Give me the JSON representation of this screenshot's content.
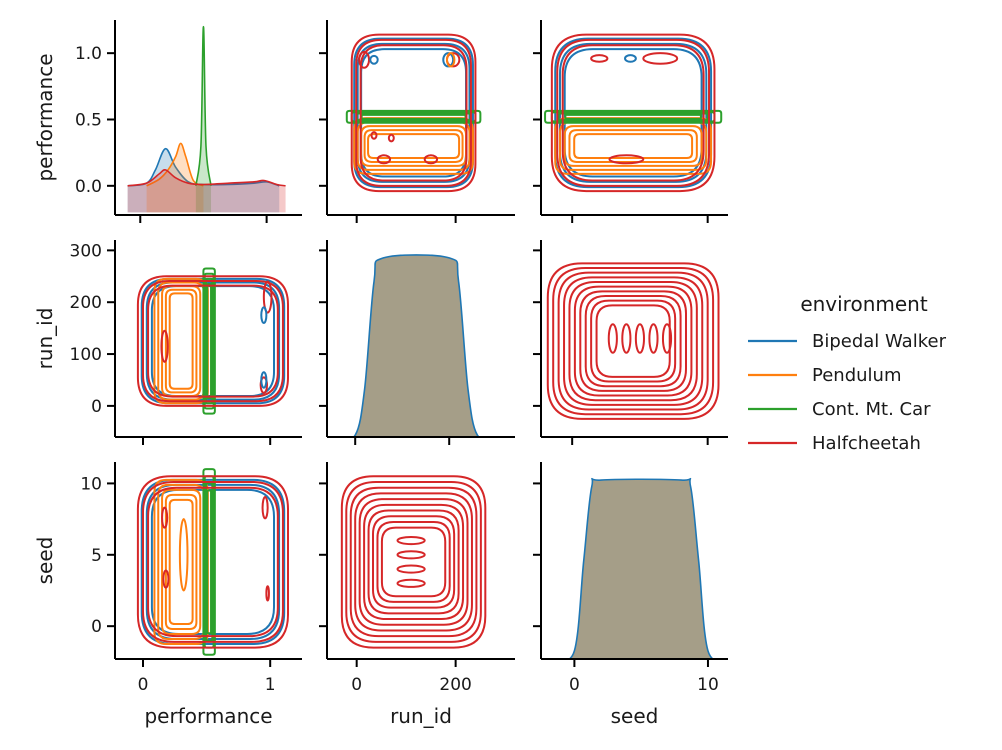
{
  "chart_data": {
    "type": "pairplot",
    "variables": [
      "performance",
      "run_id",
      "seed"
    ],
    "axis_labels": {
      "performance": "performance",
      "run_id": "run_id",
      "seed": "seed"
    },
    "ranges": {
      "performance": [
        -0.22,
        1.25
      ],
      "run_id": [
        -60,
        320
      ],
      "seed": [
        -2.3,
        11.5
      ]
    },
    "x_ticks": {
      "performance": [
        {
          "value": 0,
          "label": "0"
        },
        {
          "value": 1,
          "label": "1"
        }
      ],
      "run_id": [
        {
          "value": 0,
          "label": "0"
        },
        {
          "value": 200,
          "label": "200"
        }
      ],
      "seed": [
        {
          "value": 0,
          "label": "0"
        },
        {
          "value": 10,
          "label": "10"
        }
      ]
    },
    "y_ticks": {
      "performance": [
        {
          "value": 0.0,
          "label": "0.0"
        },
        {
          "value": 0.5,
          "label": "0.5"
        },
        {
          "value": 1.0,
          "label": "1.0"
        }
      ],
      "run_id": [
        {
          "value": 0,
          "label": "0"
        },
        {
          "value": 100,
          "label": "100"
        },
        {
          "value": 200,
          "label": "200"
        },
        {
          "value": 300,
          "label": "300"
        }
      ],
      "seed": [
        {
          "value": 0,
          "label": "0"
        },
        {
          "value": 5,
          "label": "5"
        },
        {
          "value": 10,
          "label": "10"
        }
      ]
    },
    "diag_x_ranges": {
      "performance": [
        -0.2,
        1.28
      ],
      "run_id": [
        -60,
        340
      ],
      "seed": [
        -2.5,
        11.5
      ]
    },
    "diag_ylim": {
      "run_id": [
        0,
        330
      ],
      "seed": [
        0,
        12
      ]
    },
    "legend": {
      "title": "environment",
      "placement": "right",
      "entries": [
        {
          "label": "Bipedal Walker",
          "color": "#1f77b4"
        },
        {
          "label": "Pendulum",
          "color": "#ff7f0e"
        },
        {
          "label": "Cont. Mt. Car",
          "color": "#2ca02c"
        },
        {
          "label": "Halfcheetah",
          "color": "#d62728"
        }
      ]
    },
    "diag_kde": [
      {
        "variable": "performance",
        "series": "Bipedal Walker",
        "x": [
          -0.1,
          0.05,
          0.12,
          0.2,
          0.28,
          0.38,
          0.5,
          0.7,
          0.9,
          1.0,
          1.1
        ],
        "y": [
          0.0,
          0.02,
          0.12,
          0.28,
          0.14,
          0.03,
          0.01,
          0.01,
          0.02,
          0.03,
          0.0
        ]
      },
      {
        "variable": "performance",
        "series": "Pendulum",
        "x": [
          0.05,
          0.15,
          0.22,
          0.28,
          0.32,
          0.36,
          0.42,
          0.5
        ],
        "y": [
          0.0,
          0.05,
          0.12,
          0.22,
          0.32,
          0.22,
          0.04,
          0.0
        ]
      },
      {
        "variable": "performance",
        "series": "Cont. Mt. Car",
        "x": [
          0.44,
          0.48,
          0.5,
          0.52,
          0.56
        ],
        "y": [
          0.0,
          0.3,
          1.2,
          0.3,
          0.0
        ]
      },
      {
        "variable": "performance",
        "series": "Halfcheetah",
        "x": [
          -0.1,
          0.05,
          0.15,
          0.2,
          0.28,
          0.38,
          0.5,
          0.7,
          0.9,
          0.98,
          1.08,
          1.15
        ],
        "y": [
          0.0,
          0.02,
          0.09,
          0.12,
          0.06,
          0.02,
          0.01,
          0.02,
          0.03,
          0.04,
          0.01,
          0.0
        ]
      },
      {
        "variable": "run_id",
        "series": "all",
        "x": [
          -40,
          0,
          20,
          40,
          60,
          200,
          220,
          240,
          260,
          300
        ],
        "y": [
          0,
          3,
          80,
          260,
          300,
          300,
          260,
          80,
          3,
          0
        ]
      },
      {
        "variable": "seed",
        "series": "all",
        "x": [
          -1.5,
          0,
          0.7,
          1.3,
          2.0,
          8.0,
          8.7,
          9.3,
          10.0,
          11.5
        ],
        "y": [
          0,
          0.5,
          6,
          10.5,
          10.9,
          10.9,
          10.5,
          6,
          0.5,
          0
        ]
      }
    ],
    "offdiag_contours": [
      {
        "x": "run_id",
        "y": "performance",
        "series": "Bipedal Walker",
        "center_x": 115,
        "center_y": 0.55,
        "widths": [
          240,
          226,
          212
        ],
        "heights": [
          1.12,
          1.04,
          0.96
        ]
      },
      {
        "x": "run_id",
        "y": "performance",
        "series": "Pendulum",
        "center_x": 115,
        "center_y": 0.3,
        "widths": [
          240,
          226,
          212,
          198,
          184
        ],
        "heights": [
          0.42,
          0.36,
          0.3,
          0.24,
          0.18
        ]
      },
      {
        "x": "run_id",
        "y": "performance",
        "series": "Cont. Mt. Car",
        "center_x": 115,
        "center_y": 0.52,
        "widths": [
          270,
          250,
          230,
          210
        ],
        "heights": [
          0.09,
          0.07,
          0.05,
          0.03
        ]
      },
      {
        "x": "run_id",
        "y": "performance",
        "series": "Halfcheetah",
        "center_x": 115,
        "center_y": 0.55,
        "widths": [
          250,
          232,
          214
        ],
        "heights": [
          1.18,
          1.1,
          1.02
        ]
      },
      {
        "x": "seed",
        "y": "performance",
        "series": "Bipedal Walker",
        "center_x": 4.5,
        "center_y": 0.55,
        "widths": [
          11.5,
          10.8,
          10.1
        ],
        "heights": [
          1.12,
          1.04,
          0.96
        ]
      },
      {
        "x": "seed",
        "y": "performance",
        "series": "Pendulum",
        "center_x": 4.5,
        "center_y": 0.3,
        "widths": [
          11.5,
          10.8,
          10.1,
          9.4,
          8.7
        ],
        "heights": [
          0.42,
          0.36,
          0.3,
          0.24,
          0.18
        ]
      },
      {
        "x": "seed",
        "y": "performance",
        "series": "Cont. Mt. Car",
        "center_x": 4.5,
        "center_y": 0.52,
        "widths": [
          13,
          12,
          11,
          10
        ],
        "heights": [
          0.09,
          0.07,
          0.05,
          0.03
        ]
      },
      {
        "x": "seed",
        "y": "performance",
        "series": "Halfcheetah",
        "center_x": 4.5,
        "center_y": 0.55,
        "widths": [
          12,
          11.2,
          10.4
        ],
        "heights": [
          1.18,
          1.1,
          1.02
        ]
      },
      {
        "x": "performance",
        "y": "run_id",
        "series": "Bipedal Walker",
        "center_x": 0.55,
        "center_y": 125,
        "widths": [
          1.12,
          1.04,
          0.96
        ],
        "heights": [
          240,
          226,
          212
        ]
      },
      {
        "x": "performance",
        "y": "run_id",
        "series": "Pendulum",
        "center_x": 0.3,
        "center_y": 125,
        "widths": [
          0.42,
          0.36,
          0.3,
          0.24,
          0.18
        ],
        "heights": [
          240,
          226,
          212,
          198,
          184
        ]
      },
      {
        "x": "performance",
        "y": "run_id",
        "series": "Cont. Mt. Car",
        "center_x": 0.52,
        "center_y": 125,
        "widths": [
          0.09,
          0.07,
          0.05,
          0.03
        ],
        "heights": [
          280,
          260,
          240,
          220
        ]
      },
      {
        "x": "performance",
        "y": "run_id",
        "series": "Halfcheetah",
        "center_x": 0.55,
        "center_y": 125,
        "widths": [
          1.18,
          1.1,
          1.02
        ],
        "heights": [
          250,
          232,
          214
        ]
      },
      {
        "x": "performance",
        "y": "seed",
        "series": "Bipedal Walker",
        "center_x": 0.55,
        "center_y": 4.5,
        "widths": [
          1.12,
          1.04,
          0.96
        ],
        "heights": [
          11.5,
          10.8,
          10.1
        ]
      },
      {
        "x": "performance",
        "y": "seed",
        "series": "Pendulum",
        "center_x": 0.3,
        "center_y": 4.5,
        "widths": [
          0.42,
          0.36,
          0.3,
          0.24,
          0.18
        ],
        "heights": [
          11.5,
          10.8,
          10.1,
          9.4,
          8.7
        ]
      },
      {
        "x": "performance",
        "y": "seed",
        "series": "Cont. Mt. Car",
        "center_x": 0.52,
        "center_y": 4.5,
        "widths": [
          0.09,
          0.07,
          0.05,
          0.03
        ],
        "heights": [
          13,
          12,
          11,
          10
        ]
      },
      {
        "x": "performance",
        "y": "seed",
        "series": "Halfcheetah",
        "center_x": 0.55,
        "center_y": 4.5,
        "widths": [
          1.18,
          1.1,
          1.02
        ],
        "heights": [
          12,
          11.2,
          10.4
        ]
      },
      {
        "x": "seed",
        "y": "run_id",
        "series": "Halfcheetah",
        "center_x": 4.5,
        "center_y": 125,
        "widths": [
          12.6,
          11.8,
          11.0,
          10.2,
          9.4,
          8.6,
          7.8,
          7.0,
          6.2,
          5.4
        ],
        "heights": [
          300,
          282,
          264,
          246,
          228,
          210,
          192,
          174,
          156,
          138
        ]
      },
      {
        "x": "run_id",
        "y": "seed",
        "series": "Halfcheetah",
        "center_x": 115,
        "center_y": 4.5,
        "widths": [
          290,
          272,
          254,
          236,
          218,
          200,
          182,
          164,
          146,
          128
        ],
        "heights": [
          12.0,
          11.2,
          10.4,
          9.6,
          8.8,
          8.0,
          7.2,
          6.4,
          5.6,
          4.8
        ]
      }
    ],
    "offdiag_small_contours": [
      {
        "x": "run_id",
        "y": "performance",
        "series": "Halfcheetah",
        "points": [
          [
            15,
            0.95,
            20,
            0.12
          ],
          [
            195,
            0.95,
            25,
            0.1
          ],
          [
            55,
            0.2,
            25,
            0.06
          ],
          [
            150,
            0.2,
            25,
            0.06
          ],
          [
            35,
            0.38,
            10,
            0.05
          ],
          [
            70,
            0.36,
            10,
            0.05
          ]
        ]
      },
      {
        "x": "run_id",
        "y": "performance",
        "series": "Bipedal Walker",
        "points": [
          [
            35,
            0.95,
            15,
            0.06
          ],
          [
            185,
            0.95,
            20,
            0.1
          ]
        ]
      },
      {
        "x": "run_id",
        "y": "performance",
        "series": "Pendulum",
        "points": [
          [
            190,
            0.95,
            15,
            0.1
          ]
        ]
      },
      {
        "x": "seed",
        "y": "performance",
        "series": "Halfcheetah",
        "points": [
          [
            2,
            0.96,
            1.2,
            0.05
          ],
          [
            6.5,
            0.96,
            2.5,
            0.08
          ],
          [
            4,
            0.2,
            2.5,
            0.06
          ]
        ]
      },
      {
        "x": "seed",
        "y": "performance",
        "series": "Bipedal Walker",
        "points": [
          [
            4.3,
            0.96,
            0.8,
            0.05
          ]
        ]
      },
      {
        "x": "performance",
        "y": "run_id",
        "series": "Halfcheetah",
        "points": [
          [
            0.17,
            115,
            0.05,
            60
          ],
          [
            0.98,
            210,
            0.06,
            60
          ],
          [
            0.95,
            40,
            0.05,
            30
          ]
        ]
      },
      {
        "x": "performance",
        "y": "run_id",
        "series": "Bipedal Walker",
        "points": [
          [
            0.95,
            175,
            0.04,
            30
          ],
          [
            0.95,
            50,
            0.04,
            30
          ]
        ]
      },
      {
        "x": "performance",
        "y": "seed",
        "series": "Halfcheetah",
        "points": [
          [
            0.17,
            7.6,
            0.04,
            1.4
          ],
          [
            0.18,
            3.3,
            0.04,
            1.2
          ],
          [
            0.96,
            8.3,
            0.04,
            1.5
          ],
          [
            0.98,
            2.3,
            0.02,
            1.0
          ]
        ]
      },
      {
        "x": "performance",
        "y": "seed",
        "series": "Pendulum",
        "points": [
          [
            0.32,
            5.0,
            0.06,
            5.0
          ]
        ]
      },
      {
        "x": "seed",
        "y": "run_id",
        "series": "Halfcheetah",
        "points": [
          [
            3.0,
            130,
            0.6,
            55
          ],
          [
            4.0,
            130,
            0.6,
            55
          ],
          [
            5.0,
            130,
            0.6,
            55
          ],
          [
            6.0,
            130,
            0.6,
            55
          ],
          [
            7.0,
            130,
            0.6,
            55
          ]
        ]
      },
      {
        "x": "run_id",
        "y": "seed",
        "series": "Halfcheetah",
        "points": [
          [
            110,
            6.0,
            55,
            0.5
          ],
          [
            110,
            5.0,
            55,
            0.5
          ],
          [
            110,
            4.0,
            55,
            0.5
          ],
          [
            110,
            3.0,
            55,
            0.5
          ]
        ]
      }
    ],
    "colors": {
      "Bipedal Walker": "#1f77b4",
      "Pendulum": "#ff7f0e",
      "Cont. Mt. Car": "#2ca02c",
      "Halfcheetah": "#d62728",
      "diag_fill": "#a59e88"
    },
    "grid": false
  }
}
